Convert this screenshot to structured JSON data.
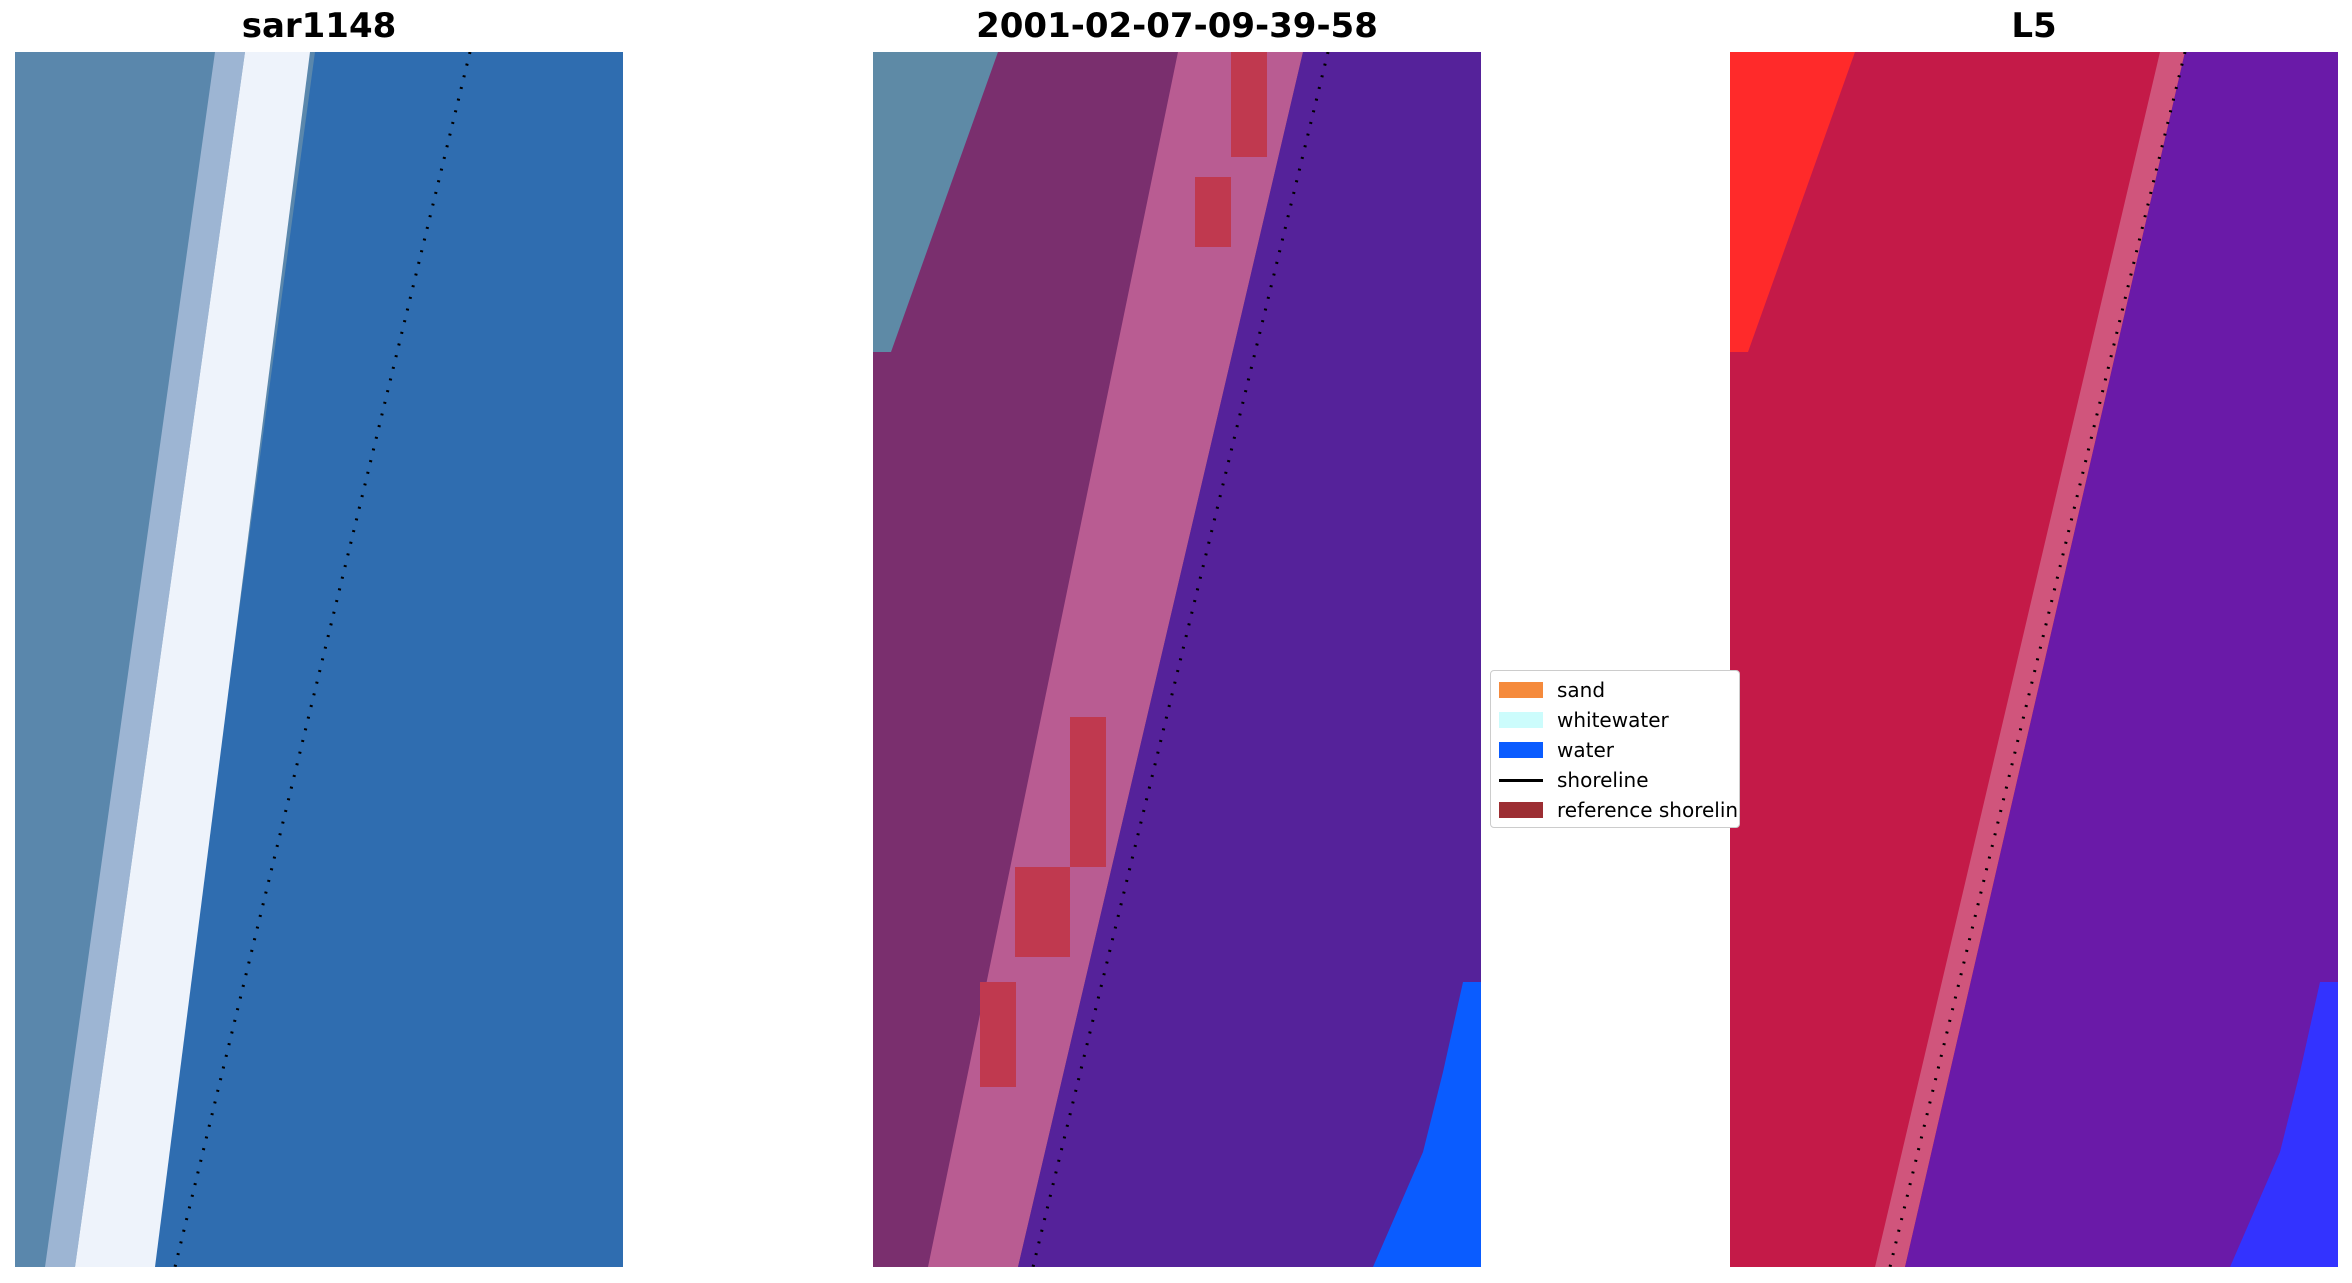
{
  "panels": [
    {
      "id": "rgb",
      "title": "sar1148"
    },
    {
      "id": "classified",
      "title": "2001-02-07-09-39-58"
    },
    {
      "id": "index",
      "title": "L5"
    }
  ],
  "legend": [
    {
      "label": "sand",
      "color": "#f58a3c",
      "kind": "patch"
    },
    {
      "label": "whitewater",
      "color": "#ccfcfc",
      "kind": "patch"
    },
    {
      "label": "water",
      "color": "#0a5cff",
      "kind": "patch"
    },
    {
      "label": "shoreline",
      "color": "#000000",
      "kind": "line"
    },
    {
      "label": "reference shoreline",
      "color": "#9c2e33",
      "kind": "patch"
    }
  ],
  "colors": {
    "rgb_sand": "#5a8aa8",
    "rgb_whitewater": "#f2f6fc",
    "rgb_water": "#2f6db0",
    "class_land": "#7a2f6e",
    "class_sand_edge": "#b95c92",
    "class_reference": "#c0394f",
    "class_water": "#55229a",
    "class_open_water": "#0a5cff",
    "index_land": "#c41a48",
    "index_bright": "#ff2a2a",
    "index_water": "#6a1aa8",
    "index_blue": "#3333ff"
  }
}
